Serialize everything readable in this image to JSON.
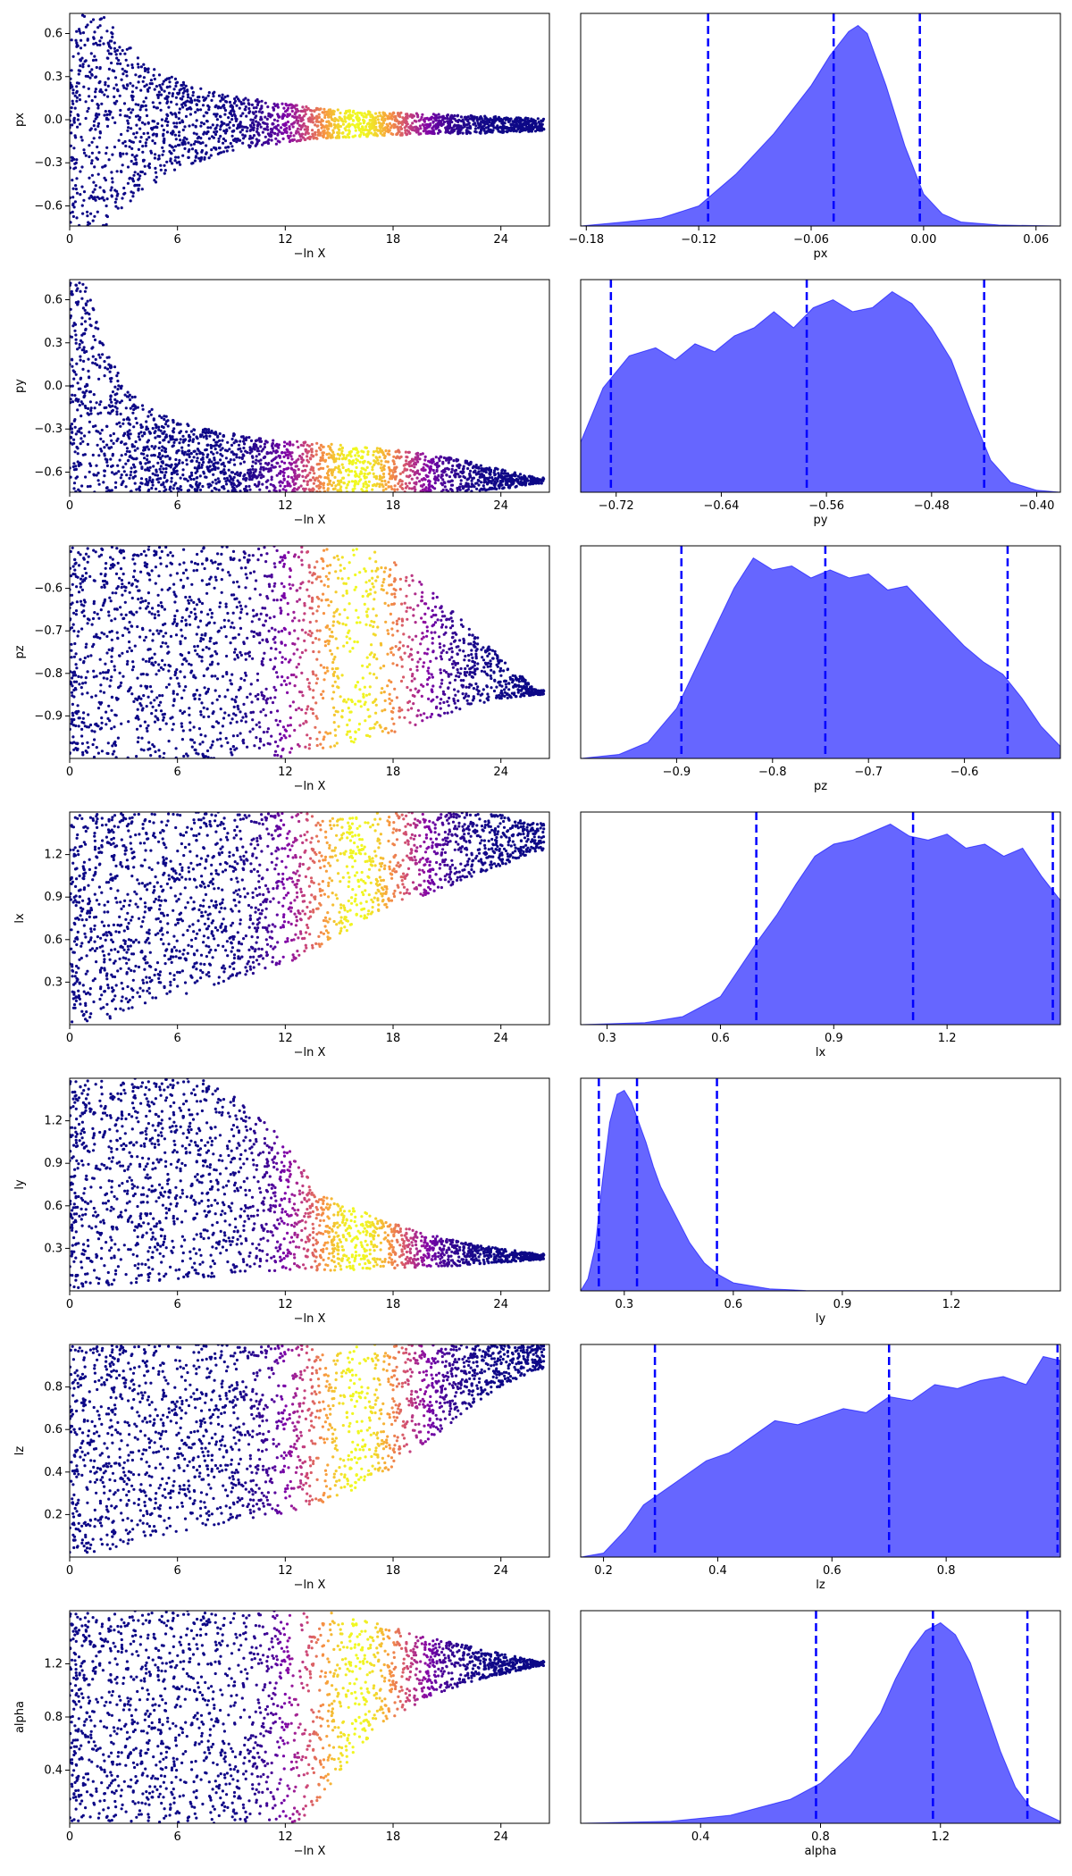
{
  "chart_data": [
    {
      "type": "scatter",
      "xlabel": "−ln X",
      "ylabel": "px",
      "xlim": [
        0,
        26.7
      ],
      "ylim": [
        -0.74,
        0.74
      ],
      "xticks": [
        0,
        6,
        12,
        18,
        24
      ],
      "xtick_labels": [
        "0",
        "6",
        "12",
        "18",
        "24"
      ],
      "yticks": [
        0.6,
        0.3,
        0.0,
        -0.3,
        -0.6
      ],
      "ytick_labels": [
        "0.6",
        "0.3",
        "0.0",
        "−0.3",
        "−0.6"
      ],
      "colormap": "plasma",
      "peak_x": 16,
      "envelope": {
        "x": [
          0,
          2,
          4,
          6,
          8,
          10,
          12,
          14,
          16,
          18,
          20,
          22,
          24,
          26
        ],
        "lower": [
          -0.74,
          -0.74,
          -0.5,
          -0.34,
          -0.26,
          -0.2,
          -0.16,
          -0.13,
          -0.12,
          -0.11,
          -0.1,
          -0.1,
          -0.09,
          -0.08
        ],
        "upper": [
          0.74,
          0.74,
          0.4,
          0.28,
          0.2,
          0.15,
          0.11,
          0.08,
          0.06,
          0.05,
          0.04,
          0.03,
          0.02,
          0.01
        ]
      }
    },
    {
      "type": "area",
      "xlabel": "px",
      "xlim": [
        -0.183,
        0.073
      ],
      "xticks": [
        -0.18,
        -0.12,
        -0.06,
        0.0,
        0.06
      ],
      "xtick_labels": [
        "−0.18",
        "−0.12",
        "−0.06",
        "0.00",
        "0.06"
      ],
      "x": [
        -0.183,
        -0.16,
        -0.14,
        -0.12,
        -0.1,
        -0.08,
        -0.06,
        -0.05,
        -0.04,
        -0.035,
        -0.03,
        -0.02,
        -0.01,
        0.0,
        0.01,
        0.02,
        0.04,
        0.073
      ],
      "density": [
        0.0,
        0.02,
        0.04,
        0.1,
        0.26,
        0.46,
        0.7,
        0.85,
        0.97,
        1.0,
        0.96,
        0.7,
        0.4,
        0.16,
        0.06,
        0.02,
        0.005,
        0.0
      ],
      "ylim": [
        0,
        1.06
      ],
      "quantiles": [
        -0.115,
        -0.048,
        -0.002
      ],
      "color": "#0000ff"
    },
    {
      "type": "scatter",
      "xlabel": "−ln X",
      "ylabel": "py",
      "xlim": [
        0,
        26.7
      ],
      "ylim": [
        -0.74,
        0.74
      ],
      "xticks": [
        0,
        6,
        12,
        18,
        24
      ],
      "xtick_labels": [
        "0",
        "6",
        "12",
        "18",
        "24"
      ],
      "yticks": [
        0.6,
        0.3,
        0.0,
        -0.3,
        -0.6
      ],
      "ytick_labels": [
        "0.6",
        "0.3",
        "0.0",
        "−0.3",
        "−0.6"
      ],
      "colormap": "plasma",
      "peak_x": 16,
      "envelope": {
        "x": [
          0,
          1,
          2,
          3,
          4,
          6,
          8,
          10,
          12,
          14,
          16,
          18,
          20,
          22,
          24,
          26
        ],
        "lower": [
          -0.74,
          -0.74,
          -0.74,
          -0.74,
          -0.74,
          -0.74,
          -0.74,
          -0.74,
          -0.74,
          -0.74,
          -0.74,
          -0.74,
          -0.74,
          -0.74,
          -0.72,
          -0.68
        ],
        "upper": [
          0.74,
          0.7,
          0.3,
          0.0,
          -0.12,
          -0.25,
          -0.31,
          -0.35,
          -0.38,
          -0.4,
          -0.42,
          -0.44,
          -0.47,
          -0.52,
          -0.58,
          -0.64
        ]
      }
    },
    {
      "type": "area",
      "xlabel": "py",
      "xlim": [
        -0.747,
        -0.382
      ],
      "xticks": [
        -0.72,
        -0.64,
        -0.56,
        -0.48,
        -0.4
      ],
      "xtick_labels": [
        "−0.72",
        "−0.64",
        "−0.56",
        "−0.48",
        "−0.40"
      ],
      "x": [
        -0.747,
        -0.73,
        -0.71,
        -0.69,
        -0.675,
        -0.66,
        -0.645,
        -0.63,
        -0.615,
        -0.6,
        -0.585,
        -0.57,
        -0.555,
        -0.54,
        -0.525,
        -0.51,
        -0.495,
        -0.48,
        -0.465,
        -0.45,
        -0.435,
        -0.42,
        -0.4,
        -0.382
      ],
      "density": [
        0.25,
        0.52,
        0.68,
        0.72,
        0.66,
        0.74,
        0.7,
        0.78,
        0.82,
        0.9,
        0.82,
        0.92,
        0.96,
        0.9,
        0.92,
        1.0,
        0.94,
        0.82,
        0.66,
        0.4,
        0.16,
        0.05,
        0.01,
        0.0
      ],
      "ylim": [
        0,
        1.06
      ],
      "quantiles": [
        -0.724,
        -0.575,
        -0.44
      ],
      "color": "#0000ff"
    },
    {
      "type": "scatter",
      "xlabel": "−ln X",
      "ylabel": "pz",
      "xlim": [
        0,
        26.7
      ],
      "ylim": [
        -1.0,
        -0.5
      ],
      "xticks": [
        0,
        6,
        12,
        18,
        24
      ],
      "xtick_labels": [
        "0",
        "6",
        "12",
        "18",
        "24"
      ],
      "yticks": [
        -0.6,
        -0.7,
        -0.8,
        -0.9
      ],
      "ytick_labels": [
        "−0.6",
        "−0.7",
        "−0.8",
        "−0.9"
      ],
      "colormap": "plasma",
      "peak_x": 16,
      "envelope": {
        "x": [
          0,
          12,
          14,
          16,
          18,
          20,
          22,
          24,
          26
        ],
        "lower": [
          -1.0,
          -1.0,
          -0.98,
          -0.96,
          -0.94,
          -0.91,
          -0.88,
          -0.86,
          -0.85
        ],
        "upper": [
          -0.5,
          -0.5,
          -0.5,
          -0.5,
          -0.53,
          -0.6,
          -0.68,
          -0.76,
          -0.84
        ]
      }
    },
    {
      "type": "area",
      "xlabel": "pz",
      "xlim": [
        -1.0,
        -0.5
      ],
      "xticks": [
        -0.9,
        -0.8,
        -0.7,
        -0.6
      ],
      "xtick_labels": [
        "−0.9",
        "−0.8",
        "−0.7",
        "−0.6"
      ],
      "x": [
        -1.0,
        -0.96,
        -0.93,
        -0.9,
        -0.87,
        -0.84,
        -0.82,
        -0.8,
        -0.78,
        -0.76,
        -0.74,
        -0.72,
        -0.7,
        -0.68,
        -0.66,
        -0.64,
        -0.62,
        -0.6,
        -0.58,
        -0.56,
        -0.54,
        -0.52,
        -0.5
      ],
      "density": [
        0.0,
        0.02,
        0.08,
        0.25,
        0.55,
        0.85,
        1.0,
        0.94,
        0.96,
        0.9,
        0.94,
        0.9,
        0.92,
        0.84,
        0.86,
        0.76,
        0.66,
        0.56,
        0.48,
        0.42,
        0.3,
        0.16,
        0.06
      ],
      "ylim": [
        0,
        1.06
      ],
      "quantiles": [
        -0.895,
        -0.745,
        -0.555
      ],
      "color": "#0000ff"
    },
    {
      "type": "scatter",
      "xlabel": "−ln X",
      "ylabel": "lx",
      "xlim": [
        0,
        26.7
      ],
      "ylim": [
        0.0,
        1.5
      ],
      "xticks": [
        0,
        6,
        12,
        18,
        24
      ],
      "xtick_labels": [
        "0",
        "6",
        "12",
        "18",
        "24"
      ],
      "yticks": [
        1.2,
        0.9,
        0.6,
        0.3
      ],
      "ytick_labels": [
        "1.2",
        "0.9",
        "0.6",
        "0.3"
      ],
      "colormap": "plasma",
      "peak_x": 16,
      "envelope": {
        "x": [
          0,
          2,
          4,
          6,
          8,
          10,
          12,
          14,
          16,
          18,
          20,
          22,
          24,
          26
        ],
        "lower": [
          0.0,
          0.03,
          0.12,
          0.2,
          0.28,
          0.35,
          0.42,
          0.55,
          0.7,
          0.82,
          0.92,
          1.02,
          1.12,
          1.22
        ],
        "upper": [
          1.5,
          1.5,
          1.5,
          1.5,
          1.5,
          1.5,
          1.5,
          1.5,
          1.5,
          1.5,
          1.5,
          1.5,
          1.48,
          1.42
        ]
      }
    },
    {
      "type": "area",
      "xlabel": "lx",
      "xlim": [
        0.23,
        1.5
      ],
      "xticks": [
        0.3,
        0.6,
        0.9,
        1.2
      ],
      "xtick_labels": [
        "0.3",
        "0.6",
        "0.9",
        "1.2"
      ],
      "x": [
        0.23,
        0.4,
        0.5,
        0.6,
        0.65,
        0.7,
        0.75,
        0.8,
        0.85,
        0.9,
        0.95,
        1.0,
        1.05,
        1.1,
        1.15,
        1.2,
        1.25,
        1.3,
        1.35,
        1.4,
        1.45,
        1.5
      ],
      "density": [
        0.0,
        0.01,
        0.04,
        0.14,
        0.28,
        0.42,
        0.55,
        0.7,
        0.84,
        0.9,
        0.92,
        0.96,
        1.0,
        0.94,
        0.92,
        0.95,
        0.88,
        0.9,
        0.84,
        0.88,
        0.74,
        0.62
      ],
      "ylim": [
        0,
        1.06
      ],
      "quantiles": [
        0.695,
        1.11,
        1.48
      ],
      "color": "#0000ff"
    },
    {
      "type": "scatter",
      "xlabel": "−ln X",
      "ylabel": "ly",
      "xlim": [
        0,
        26.7
      ],
      "ylim": [
        0.0,
        1.5
      ],
      "xticks": [
        0,
        6,
        12,
        18,
        24
      ],
      "xtick_labels": [
        "0",
        "6",
        "12",
        "18",
        "24"
      ],
      "yticks": [
        1.2,
        0.9,
        0.6,
        0.3
      ],
      "ytick_labels": [
        "1.2",
        "0.9",
        "0.6",
        "0.3"
      ],
      "colormap": "plasma",
      "peak_x": 16,
      "envelope": {
        "x": [
          0,
          2,
          4,
          6,
          8,
          10,
          12,
          14,
          16,
          18,
          20,
          22,
          24,
          26
        ],
        "lower": [
          0.0,
          0.02,
          0.05,
          0.08,
          0.1,
          0.12,
          0.13,
          0.14,
          0.15,
          0.16,
          0.17,
          0.18,
          0.2,
          0.22
        ],
        "upper": [
          1.5,
          1.5,
          1.5,
          1.5,
          1.5,
          1.3,
          1.05,
          0.68,
          0.58,
          0.48,
          0.4,
          0.34,
          0.3,
          0.26
        ]
      }
    },
    {
      "type": "area",
      "xlabel": "ly",
      "xlim": [
        0.18,
        1.5
      ],
      "xticks": [
        0.3,
        0.6,
        0.9,
        1.2
      ],
      "xtick_labels": [
        "0.3",
        "0.6",
        "0.9",
        "1.2"
      ],
      "x": [
        0.18,
        0.2,
        0.22,
        0.24,
        0.26,
        0.28,
        0.3,
        0.32,
        0.34,
        0.36,
        0.38,
        0.4,
        0.44,
        0.48,
        0.52,
        0.56,
        0.6,
        0.7,
        0.8,
        1.5
      ],
      "density": [
        0.0,
        0.06,
        0.22,
        0.55,
        0.84,
        0.98,
        1.0,
        0.94,
        0.84,
        0.74,
        0.62,
        0.52,
        0.38,
        0.24,
        0.14,
        0.08,
        0.04,
        0.01,
        0.002,
        0.0
      ],
      "ylim": [
        0,
        1.06
      ],
      "quantiles": [
        0.23,
        0.335,
        0.555
      ],
      "color": "#0000ff"
    },
    {
      "type": "scatter",
      "xlabel": "−ln X",
      "ylabel": "lz",
      "xlim": [
        0,
        26.7
      ],
      "ylim": [
        0.0,
        1.0
      ],
      "xticks": [
        0,
        6,
        12,
        18,
        24
      ],
      "xtick_labels": [
        "0",
        "6",
        "12",
        "18",
        "24"
      ],
      "yticks": [
        0.8,
        0.6,
        0.4,
        0.2
      ],
      "ytick_labels": [
        "0.8",
        "0.6",
        "0.4",
        "0.2"
      ],
      "colormap": "plasma",
      "peak_x": 16,
      "envelope": {
        "x": [
          0,
          2,
          4,
          6,
          8,
          10,
          12,
          14,
          16,
          18,
          20,
          22,
          24,
          26
        ],
        "lower": [
          0.0,
          0.03,
          0.08,
          0.12,
          0.15,
          0.18,
          0.2,
          0.25,
          0.32,
          0.42,
          0.55,
          0.68,
          0.8,
          0.88
        ],
        "upper": [
          1.0,
          1.0,
          1.0,
          1.0,
          1.0,
          1.0,
          1.0,
          1.0,
          1.0,
          1.0,
          1.0,
          1.0,
          1.0,
          1.0
        ]
      }
    },
    {
      "type": "area",
      "xlabel": "lz",
      "xlim": [
        0.16,
        1.0
      ],
      "xticks": [
        0.2,
        0.4,
        0.6,
        0.8
      ],
      "xtick_labels": [
        "0.2",
        "0.4",
        "0.6",
        "0.8"
      ],
      "x": [
        0.16,
        0.2,
        0.24,
        0.27,
        0.3,
        0.34,
        0.38,
        0.42,
        0.46,
        0.5,
        0.54,
        0.58,
        0.62,
        0.66,
        0.7,
        0.74,
        0.78,
        0.82,
        0.86,
        0.9,
        0.94,
        0.97,
        1.0
      ],
      "density": [
        0.0,
        0.02,
        0.14,
        0.26,
        0.32,
        0.4,
        0.48,
        0.52,
        0.6,
        0.68,
        0.66,
        0.7,
        0.74,
        0.72,
        0.8,
        0.78,
        0.86,
        0.84,
        0.88,
        0.9,
        0.86,
        1.0,
        0.98
      ],
      "ylim": [
        0,
        1.06
      ],
      "quantiles": [
        0.29,
        0.7,
        0.995
      ],
      "color": "#0000ff"
    },
    {
      "type": "scatter",
      "xlabel": "−ln X",
      "ylabel": "alpha",
      "xlim": [
        0,
        26.7
      ],
      "ylim": [
        0.0,
        1.6
      ],
      "xticks": [
        0,
        6,
        12,
        18,
        24
      ],
      "xtick_labels": [
        "0",
        "6",
        "12",
        "18",
        "24"
      ],
      "yticks": [
        1.2,
        0.8,
        0.4
      ],
      "ytick_labels": [
        "1.2",
        "0.8",
        "0.4"
      ],
      "colormap": "plasma",
      "peak_x": 16,
      "envelope": {
        "x": [
          0,
          12,
          13,
          14,
          16,
          18,
          20,
          22,
          24,
          26
        ],
        "lower": [
          0.0,
          0.0,
          0.0,
          0.2,
          0.55,
          0.8,
          0.95,
          1.05,
          1.12,
          1.18
        ],
        "upper": [
          1.6,
          1.6,
          1.6,
          1.6,
          1.55,
          1.48,
          1.4,
          1.34,
          1.28,
          1.22
        ]
      }
    },
    {
      "type": "area",
      "xlabel": "alpha",
      "xlim": [
        0.0,
        1.6
      ],
      "xticks": [
        0.4,
        0.8,
        1.2
      ],
      "xtick_labels": [
        "0.4",
        "0.8",
        "1.2"
      ],
      "x": [
        0.0,
        0.3,
        0.5,
        0.6,
        0.7,
        0.8,
        0.9,
        1.0,
        1.05,
        1.1,
        1.15,
        1.2,
        1.25,
        1.3,
        1.35,
        1.4,
        1.45,
        1.5,
        1.6
      ],
      "density": [
        0.0,
        0.01,
        0.04,
        0.08,
        0.12,
        0.2,
        0.34,
        0.55,
        0.72,
        0.86,
        0.96,
        1.0,
        0.94,
        0.8,
        0.58,
        0.36,
        0.18,
        0.08,
        0.01
      ],
      "ylim": [
        0,
        1.06
      ],
      "quantiles": [
        0.785,
        1.175,
        1.49
      ],
      "color": "#0000ff"
    }
  ]
}
